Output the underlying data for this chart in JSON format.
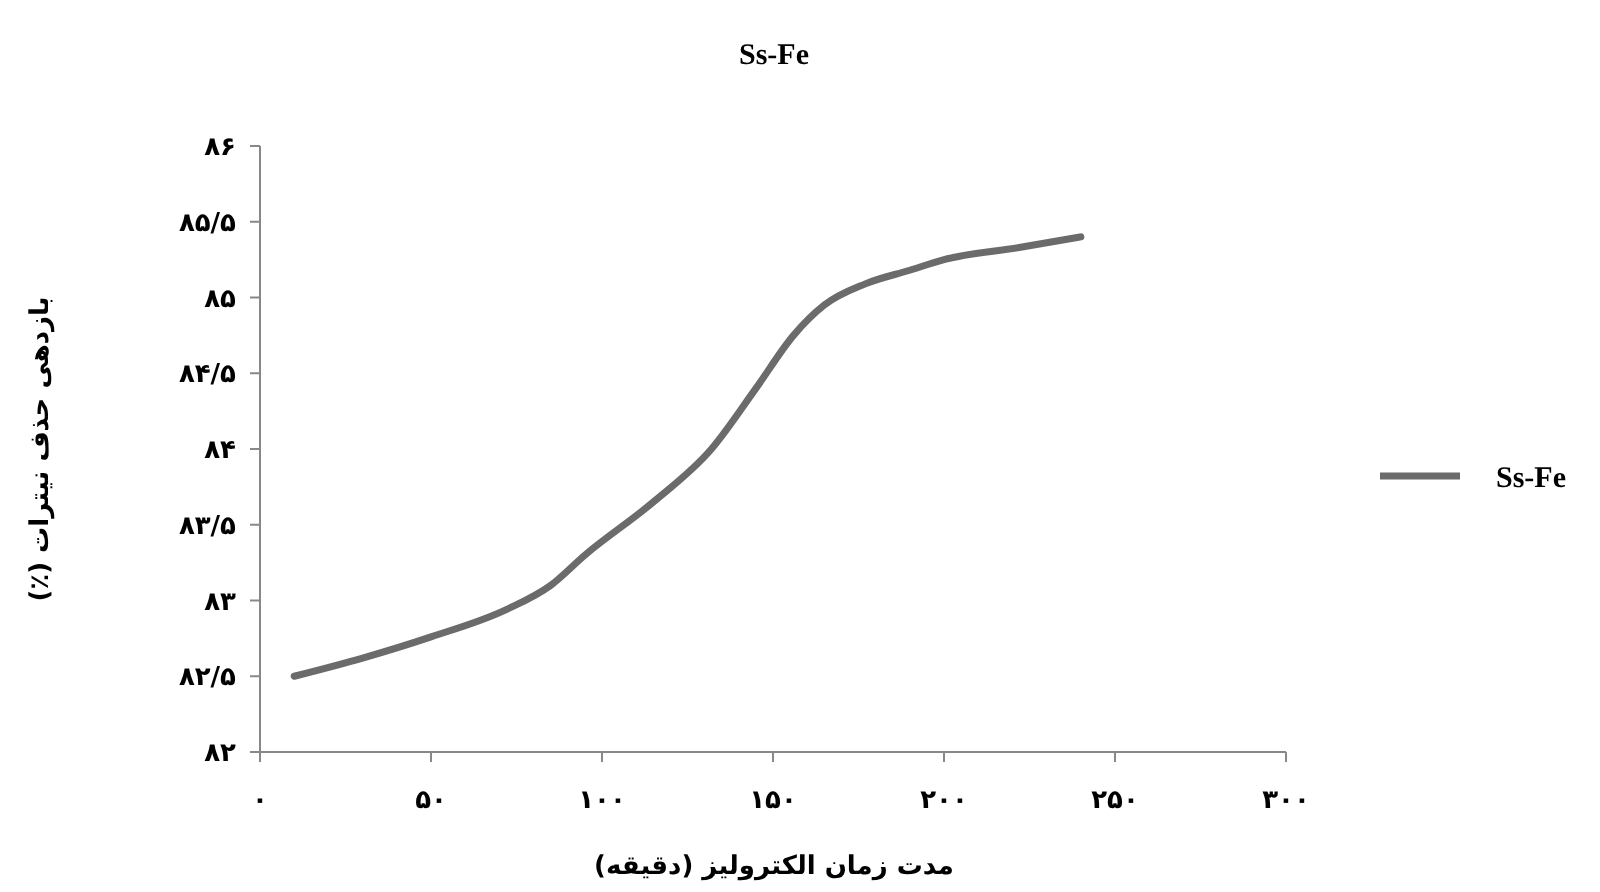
{
  "chart_data": {
    "type": "line",
    "title": "Ss-Fe",
    "xlabel": "مدت زمان الکترولیز (دقیقه)",
    "ylabel": "بازدهی حذف نیترات (٪)",
    "xlim": [
      0,
      300
    ],
    "ylim": [
      82,
      86
    ],
    "xticks": [
      {
        "value": 0,
        "label": "۰"
      },
      {
        "value": 50,
        "label": "۵۰"
      },
      {
        "value": 100,
        "label": "۱۰۰"
      },
      {
        "value": 150,
        "label": "۱۵۰"
      },
      {
        "value": 200,
        "label": "۲۰۰"
      },
      {
        "value": 250,
        "label": "۲۵۰"
      },
      {
        "value": 300,
        "label": "۳۰۰"
      }
    ],
    "yticks": [
      {
        "value": 82,
        "label": "۸۲"
      },
      {
        "value": 82.5,
        "label": "۸۲/۵"
      },
      {
        "value": 83,
        "label": "۸۳"
      },
      {
        "value": 83.5,
        "label": "۸۳/۵"
      },
      {
        "value": 84,
        "label": "۸۴"
      },
      {
        "value": 84.5,
        "label": "۸۴/۵"
      },
      {
        "value": 85,
        "label": "۸۵"
      },
      {
        "value": 85.5,
        "label": "۸۵/۵"
      },
      {
        "value": 86,
        "label": "۸۶"
      }
    ],
    "x": [
      10,
      30,
      50,
      72,
      85,
      95,
      115,
      132,
      145,
      156,
      165,
      177,
      190,
      200,
      222,
      240
    ],
    "series": [
      {
        "name": "Ss-Fe",
        "color": "#6b6b6b",
        "values": [
          82.5,
          82.62,
          82.76,
          82.94,
          83.1,
          83.3,
          83.65,
          84.0,
          84.4,
          84.75,
          84.95,
          85.09,
          85.18,
          85.25,
          85.33,
          85.4
        ]
      }
    ],
    "grid": false,
    "legend": "right",
    "marker": "none",
    "line_style": "solid"
  }
}
